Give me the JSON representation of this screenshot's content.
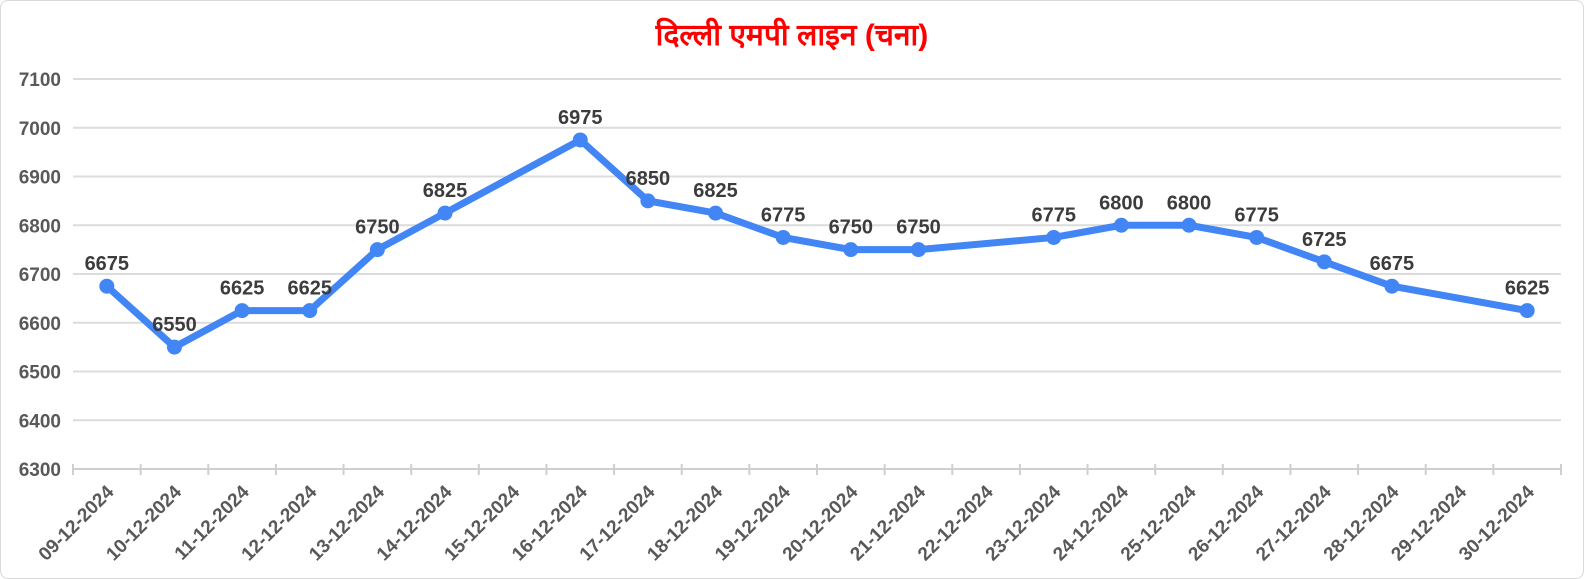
{
  "page": {
    "background_color": "#ffffff",
    "border_color": "#d9d9d9"
  },
  "chart_data": {
    "type": "line",
    "title": "दिल्ली एमपी लाइन (चना)",
    "title_color": "#ff0000",
    "series_color": "#4285f4",
    "data_label_color": "#3c3c3c",
    "axis_label_color": "#595959",
    "gridline_color": "#dcdcdc",
    "axis_line_color": "#cfcfcf",
    "categories": [
      "09-12-2024",
      "10-12-2024",
      "11-12-2024",
      "12-12-2024",
      "13-12-2024",
      "14-12-2024",
      "15-12-2024",
      "16-12-2024",
      "17-12-2024",
      "18-12-2024",
      "19-12-2024",
      "20-12-2024",
      "21-12-2024",
      "22-12-2024",
      "23-12-2024",
      "24-12-2024",
      "25-12-2024",
      "26-12-2024",
      "27-12-2024",
      "28-12-2024",
      "29-12-2024",
      "30-12-2024"
    ],
    "values": [
      6675,
      6550,
      6625,
      6625,
      6750,
      6825,
      null,
      6975,
      6850,
      6825,
      6775,
      6750,
      6750,
      null,
      6775,
      6800,
      6800,
      6775,
      6725,
      6675,
      null,
      6625
    ],
    "y_ticks": [
      6300,
      6400,
      6500,
      6600,
      6700,
      6800,
      6900,
      7000,
      7100
    ],
    "ylim": [
      6300,
      7100
    ],
    "xlabel": "",
    "ylabel": "",
    "grid": true,
    "legend_position": "none",
    "data_labels": true,
    "x_label_rotation": -45
  }
}
